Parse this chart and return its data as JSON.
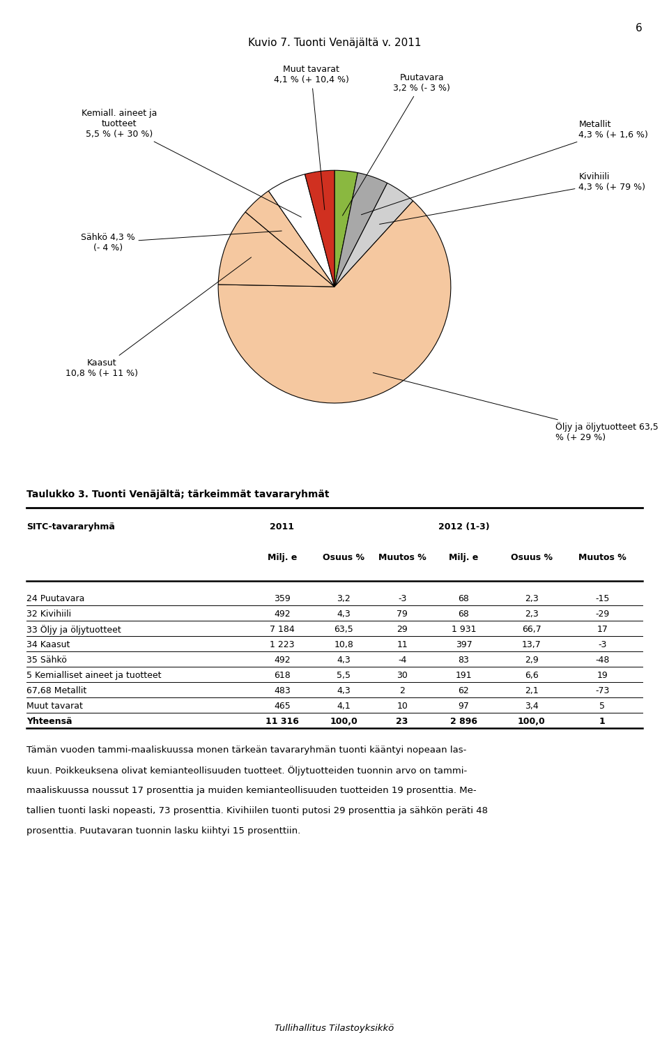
{
  "title": "Kuvio 7. Tuonti Venäjältä v. 2011",
  "page_number": "6",
  "sizes": [
    3.2,
    4.3,
    4.3,
    63.5,
    10.8,
    4.3,
    5.5,
    4.1
  ],
  "colors_pie": [
    "#8ab840",
    "#a8a8a8",
    "#d0d0d0",
    "#f5c8a0",
    "#f5c8a0",
    "#f5c8a0",
    "#ffffff",
    "#d03020"
  ],
  "table_title": "Taulukko 3. Tuonti Venäjältä; tärkeimmät tavararyhmät",
  "table_rows": [
    [
      "24 Puutavara",
      "359",
      "3,2",
      "-3",
      "68",
      "2,3",
      "-15"
    ],
    [
      "32 Kivihiili",
      "492",
      "4,3",
      "79",
      "68",
      "2,3",
      "-29"
    ],
    [
      "33 Öljy ja öljytuotteet",
      "7 184",
      "63,5",
      "29",
      "1 931",
      "66,7",
      "17"
    ],
    [
      "34 Kaasut",
      "1 223",
      "10,8",
      "11",
      "397",
      "13,7",
      "-3"
    ],
    [
      "35 Sähkö",
      "492",
      "4,3",
      "-4",
      "83",
      "2,9",
      "-48"
    ],
    [
      "5 Kemialliset aineet ja tuotteet",
      "618",
      "5,5",
      "30",
      "191",
      "6,6",
      "19"
    ],
    [
      "67,68 Metallit",
      "483",
      "4,3",
      "2",
      "62",
      "2,1",
      "-73"
    ],
    [
      "Muut tavarat",
      "465",
      "4,1",
      "10",
      "97",
      "3,4",
      "5"
    ],
    [
      "Yhteensä",
      "11 316",
      "100,0",
      "23",
      "2 896",
      "100,0",
      "1"
    ]
  ],
  "body_text": "Tämän vuoden tammi-maaliskuussa monen tärkeän tavararyhmän tuonti kääntyi nopeaan las-\nkuun. Poikkeuksena olivat kemianteollisuuden tuotteet. Öljytuotteiden tuonnin arvo on tammi-\nmaaliskuussa noussut 17 prosenttia ja muiden kemianteollisuuden tuotteiden 19 prosenttia. Me-\ntallien tuonti laski nopeasti, 73 prosenttia. Kivihiilen tuonti putosi 29 prosenttia ja sähkön peräti 48\nprosenttia. Puutavaran tuonnin lasku kiihtyi 15 prosenttiin.",
  "footer": "Tullihallitus Tilastoyksikkö",
  "startangle": 90,
  "pie_label_fontsize": 9,
  "table_fontsize": 9,
  "body_fontsize": 9.5
}
